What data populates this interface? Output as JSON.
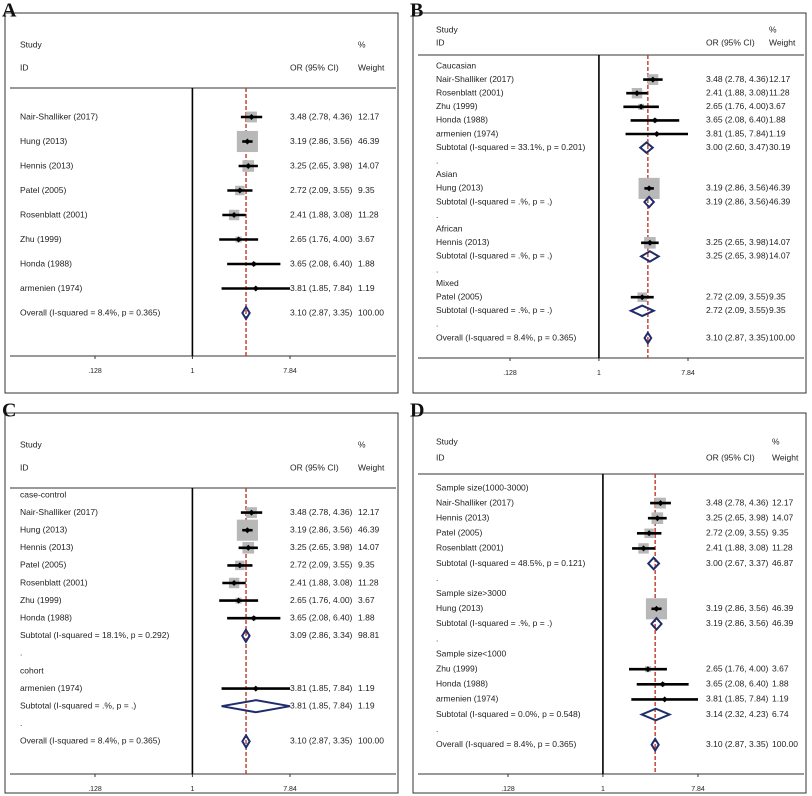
{
  "chart_data": [
    {
      "type": "forest",
      "panel": "A",
      "xscale": "log",
      "xlim": [
        0.128,
        7.84
      ],
      "xticks": [
        {
          "value": 0.128,
          "label": ".128"
        },
        1,
        7.84
      ],
      "ref_line": 1,
      "columns": {
        "study": "Study",
        "id": "ID",
        "or": "OR (95% CI)",
        "pct": "%",
        "weight": "Weight"
      },
      "rows": [
        {
          "kind": "study",
          "label": "Nair-Shalliker (2017)",
          "or": 3.48,
          "ci": [
            2.78,
            4.36
          ],
          "or_label": "3.48 (2.78, 4.36)",
          "weight": 12.17
        },
        {
          "kind": "study",
          "label": "Hung (2013)",
          "or": 3.19,
          "ci": [
            2.86,
            3.56
          ],
          "or_label": "3.19 (2.86, 3.56)",
          "weight": 46.39
        },
        {
          "kind": "study",
          "label": "Hennis (2013)",
          "or": 3.25,
          "ci": [
            2.65,
            3.98
          ],
          "or_label": "3.25 (2.65, 3.98)",
          "weight": 14.07
        },
        {
          "kind": "study",
          "label": "Patel (2005)",
          "or": 2.72,
          "ci": [
            2.09,
            3.55
          ],
          "or_label": "2.72 (2.09, 3.55)",
          "weight": 9.35
        },
        {
          "kind": "study",
          "label": "Rosenblatt (2001)",
          "or": 2.41,
          "ci": [
            1.88,
            3.08
          ],
          "or_label": "2.41 (1.88, 3.08)",
          "weight": 11.28
        },
        {
          "kind": "study",
          "label": "Zhu (1999)",
          "or": 2.65,
          "ci": [
            1.76,
            4.0
          ],
          "or_label": "2.65 (1.76, 4.00)",
          "weight": 3.67
        },
        {
          "kind": "study",
          "label": "Honda (1988)",
          "or": 3.65,
          "ci": [
            2.08,
            6.4
          ],
          "or_label": "3.65 (2.08, 6.40)",
          "weight": 1.88
        },
        {
          "kind": "study",
          "label": "armenien (1974)",
          "or": 3.81,
          "ci": [
            1.85,
            7.84
          ],
          "or_label": "3.81 (1.85, 7.84)",
          "weight": 1.19
        },
        {
          "kind": "overall",
          "label": "Overall  (I-squared = 8.4%, p = 0.365)",
          "or": 3.1,
          "ci": [
            2.87,
            3.35
          ],
          "or_label": "3.10 (2.87, 3.35)",
          "weight": 100,
          "weight_label": "100.00"
        }
      ]
    },
    {
      "type": "forest",
      "panel": "B",
      "xscale": "log",
      "xlim": [
        0.128,
        7.84
      ],
      "xticks": [
        {
          "value": 0.128,
          "label": ".128"
        },
        1,
        7.84
      ],
      "ref_line": 1,
      "columns": {
        "study": "Study",
        "id": "ID",
        "or": "OR (95% CI)",
        "pct": "%",
        "weight": "Weight"
      },
      "rows": [
        {
          "kind": "group",
          "label": "Caucasian"
        },
        {
          "kind": "study",
          "label": "Nair-Shalliker (2017)",
          "or": 3.48,
          "ci": [
            2.78,
            4.36
          ],
          "or_label": "3.48 (2.78, 4.36)",
          "weight": 12.17
        },
        {
          "kind": "study",
          "label": "Rosenblatt (2001)",
          "or": 2.41,
          "ci": [
            1.88,
            3.08
          ],
          "or_label": "2.41 (1.88, 3.08)",
          "weight": 11.28
        },
        {
          "kind": "study",
          "label": "Zhu (1999)",
          "or": 2.65,
          "ci": [
            1.76,
            4.0
          ],
          "or_label": "2.65 (1.76, 4.00)",
          "weight": 3.67
        },
        {
          "kind": "study",
          "label": "Honda (1988)",
          "or": 3.65,
          "ci": [
            2.08,
            6.4
          ],
          "or_label": "3.65 (2.08, 6.40)",
          "weight": 1.88
        },
        {
          "kind": "study",
          "label": "armenien (1974)",
          "or": 3.81,
          "ci": [
            1.85,
            7.84
          ],
          "or_label": "3.81 (1.85, 7.84)",
          "weight": 1.19
        },
        {
          "kind": "subtotal",
          "label": "Subtotal  (I-squared = 33.1%, p = 0.201)",
          "or": 3.0,
          "ci": [
            2.6,
            3.47
          ],
          "or_label": "3.00 (2.60, 3.47)",
          "weight": 30.19
        },
        {
          "kind": "group",
          "label": "."
        },
        {
          "kind": "group",
          "label": "Asian"
        },
        {
          "kind": "study",
          "label": "Hung (2013)",
          "or": 3.19,
          "ci": [
            2.86,
            3.56
          ],
          "or_label": "3.19 (2.86, 3.56)",
          "weight": 46.39
        },
        {
          "kind": "subtotal",
          "label": "Subtotal  (I-squared = .%, p = .)",
          "or": 3.19,
          "ci": [
            2.86,
            3.56
          ],
          "or_label": "3.19 (2.86, 3.56)",
          "weight": 46.39
        },
        {
          "kind": "group",
          "label": "."
        },
        {
          "kind": "group",
          "label": "African"
        },
        {
          "kind": "study",
          "label": "Hennis (2013)",
          "or": 3.25,
          "ci": [
            2.65,
            3.98
          ],
          "or_label": "3.25 (2.65, 3.98)",
          "weight": 14.07
        },
        {
          "kind": "subtotal",
          "label": "Subtotal  (I-squared = .%, p = .)",
          "or": 3.25,
          "ci": [
            2.65,
            3.98
          ],
          "or_label": "3.25 (2.65, 3.98)",
          "weight": 14.07
        },
        {
          "kind": "group",
          "label": "."
        },
        {
          "kind": "group",
          "label": "Mixed"
        },
        {
          "kind": "study",
          "label": "Patel (2005)",
          "or": 2.72,
          "ci": [
            2.09,
            3.55
          ],
          "or_label": "2.72 (2.09, 3.55)",
          "weight": 9.35
        },
        {
          "kind": "subtotal",
          "label": "Subtotal  (I-squared = .%, p = .)",
          "or": 2.72,
          "ci": [
            2.09,
            3.55
          ],
          "or_label": "2.72 (2.09, 3.55)",
          "weight": 9.35
        },
        {
          "kind": "group",
          "label": "."
        },
        {
          "kind": "overall",
          "label": "Overall  (I-squared = 8.4%, p = 0.365)",
          "or": 3.1,
          "ci": [
            2.87,
            3.35
          ],
          "or_label": "3.10 (2.87, 3.35)",
          "weight": 100,
          "weight_label": "100.00"
        }
      ]
    },
    {
      "type": "forest",
      "panel": "C",
      "xscale": "log",
      "xlim": [
        0.128,
        7.84
      ],
      "xticks": [
        {
          "value": 0.128,
          "label": ".128"
        },
        1,
        7.84
      ],
      "ref_line": 1,
      "columns": {
        "study": "Study",
        "id": "ID",
        "or": "OR (95% CI)",
        "pct": "%",
        "weight": "Weight"
      },
      "rows": [
        {
          "kind": "group",
          "label": "case-control"
        },
        {
          "kind": "study",
          "label": "Nair-Shalliker (2017)",
          "or": 3.48,
          "ci": [
            2.78,
            4.36
          ],
          "or_label": "3.48 (2.78, 4.36)",
          "weight": 12.17
        },
        {
          "kind": "study",
          "label": "Hung (2013)",
          "or": 3.19,
          "ci": [
            2.86,
            3.56
          ],
          "or_label": "3.19 (2.86, 3.56)",
          "weight": 46.39
        },
        {
          "kind": "study",
          "label": "Hennis (2013)",
          "or": 3.25,
          "ci": [
            2.65,
            3.98
          ],
          "or_label": "3.25 (2.65, 3.98)",
          "weight": 14.07
        },
        {
          "kind": "study",
          "label": "Patel (2005)",
          "or": 2.72,
          "ci": [
            2.09,
            3.55
          ],
          "or_label": "2.72 (2.09, 3.55)",
          "weight": 9.35
        },
        {
          "kind": "study",
          "label": "Rosenblatt (2001)",
          "or": 2.41,
          "ci": [
            1.88,
            3.08
          ],
          "or_label": "2.41 (1.88, 3.08)",
          "weight": 11.28
        },
        {
          "kind": "study",
          "label": "Zhu (1999)",
          "or": 2.65,
          "ci": [
            1.76,
            4.0
          ],
          "or_label": "2.65 (1.76, 4.00)",
          "weight": 3.67
        },
        {
          "kind": "study",
          "label": "Honda (1988)",
          "or": 3.65,
          "ci": [
            2.08,
            6.4
          ],
          "or_label": "3.65 (2.08, 6.40)",
          "weight": 1.88
        },
        {
          "kind": "subtotal",
          "label": "Subtotal  (I-squared = 18.1%, p = 0.292)",
          "or": 3.09,
          "ci": [
            2.86,
            3.34
          ],
          "or_label": "3.09 (2.86, 3.34)",
          "weight": 98.81
        },
        {
          "kind": "group",
          "label": "."
        },
        {
          "kind": "group",
          "label": "cohort"
        },
        {
          "kind": "study",
          "label": "armenien (1974)",
          "or": 3.81,
          "ci": [
            1.85,
            7.84
          ],
          "or_label": "3.81 (1.85, 7.84)",
          "weight": 1.19
        },
        {
          "kind": "subtotal",
          "label": "Subtotal  (I-squared = .%, p = .)",
          "or": 3.81,
          "ci": [
            1.85,
            7.84
          ],
          "or_label": "3.81 (1.85, 7.84)",
          "weight": 1.19
        },
        {
          "kind": "group",
          "label": "."
        },
        {
          "kind": "overall",
          "label": "Overall  (I-squared = 8.4%, p = 0.365)",
          "or": 3.1,
          "ci": [
            2.87,
            3.35
          ],
          "or_label": "3.10 (2.87, 3.35)",
          "weight": 100,
          "weight_label": "100.00"
        }
      ]
    },
    {
      "type": "forest",
      "panel": "D",
      "xscale": "log",
      "xlim": [
        0.128,
        7.84
      ],
      "xticks": [
        {
          "value": 0.128,
          "label": ".128"
        },
        1,
        7.84
      ],
      "ref_line": 1,
      "columns": {
        "study": "Study",
        "id": "ID",
        "or": "OR (95% CI)",
        "pct": "%",
        "weight": "Weight"
      },
      "rows": [
        {
          "kind": "group",
          "label": "Sample size(1000-3000)"
        },
        {
          "kind": "study",
          "label": "Nair-Shalliker (2017)",
          "or": 3.48,
          "ci": [
            2.78,
            4.36
          ],
          "or_label": "3.48 (2.78, 4.36)",
          "weight": 12.17
        },
        {
          "kind": "study",
          "label": "Hennis (2013)",
          "or": 3.25,
          "ci": [
            2.65,
            3.98
          ],
          "or_label": "3.25 (2.65, 3.98)",
          "weight": 14.07
        },
        {
          "kind": "study",
          "label": "Patel (2005)",
          "or": 2.72,
          "ci": [
            2.09,
            3.55
          ],
          "or_label": "2.72 (2.09, 3.55)",
          "weight": 9.35
        },
        {
          "kind": "study",
          "label": "Rosenblatt (2001)",
          "or": 2.41,
          "ci": [
            1.88,
            3.08
          ],
          "or_label": "2.41 (1.88, 3.08)",
          "weight": 11.28
        },
        {
          "kind": "subtotal",
          "label": "Subtotal  (I-squared = 48.5%, p = 0.121)",
          "or": 3.0,
          "ci": [
            2.67,
            3.37
          ],
          "or_label": "3.00 (2.67, 3.37)",
          "weight": 46.87
        },
        {
          "kind": "group",
          "label": "."
        },
        {
          "kind": "group",
          "label": "Sample size>3000"
        },
        {
          "kind": "study",
          "label": "Hung (2013)",
          "or": 3.19,
          "ci": [
            2.86,
            3.56
          ],
          "or_label": "3.19 (2.86, 3.56)",
          "weight": 46.39
        },
        {
          "kind": "subtotal",
          "label": "Subtotal  (I-squared = .%, p = .)",
          "or": 3.19,
          "ci": [
            2.86,
            3.56
          ],
          "or_label": "3.19 (2.86, 3.56)",
          "weight": 46.39
        },
        {
          "kind": "group",
          "label": "."
        },
        {
          "kind": "group",
          "label": "Sample size<1000"
        },
        {
          "kind": "study",
          "label": "Zhu (1999)",
          "or": 2.65,
          "ci": [
            1.76,
            4.0
          ],
          "or_label": "2.65 (1.76, 4.00)",
          "weight": 3.67
        },
        {
          "kind": "study",
          "label": "Honda (1988)",
          "or": 3.65,
          "ci": [
            2.08,
            6.4
          ],
          "or_label": "3.65 (2.08, 6.40)",
          "weight": 1.88
        },
        {
          "kind": "study",
          "label": "armenien (1974)",
          "or": 3.81,
          "ci": [
            1.85,
            7.84
          ],
          "or_label": "3.81 (1.85, 7.84)",
          "weight": 1.19
        },
        {
          "kind": "subtotal",
          "label": "Subtotal  (I-squared = 0.0%, p = 0.548)",
          "or": 3.14,
          "ci": [
            2.32,
            4.23
          ],
          "or_label": "3.14 (2.32, 4.23)",
          "weight": 6.74
        },
        {
          "kind": "group",
          "label": "."
        },
        {
          "kind": "overall",
          "label": "Overall  (I-squared = 8.4%, p = 0.365)",
          "or": 3.1,
          "ci": [
            2.87,
            3.35
          ],
          "or_label": "3.10 (2.87, 3.35)",
          "weight": 100,
          "weight_label": "100.00"
        }
      ]
    }
  ]
}
